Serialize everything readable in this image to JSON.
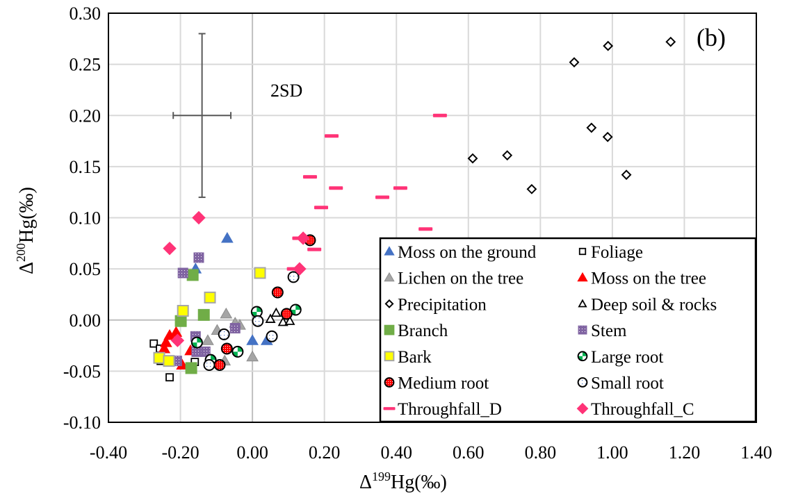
{
  "chart_data": {
    "type": "scatter",
    "panel_label": "(b)",
    "xlabel": {
      "prefix": "Δ",
      "sup": "199",
      "suffix": "Hg(‰)"
    },
    "ylabel": {
      "prefix": "Δ",
      "sup": "200",
      "suffix": "Hg(‰)"
    },
    "xlim": [
      -0.4,
      1.4
    ],
    "ylim": [
      -0.1,
      0.3
    ],
    "xticks": [
      "-0.40",
      "-0.20",
      "0.00",
      "0.20",
      "0.40",
      "0.60",
      "0.80",
      "1.00",
      "1.20",
      "1.40"
    ],
    "yticks": [
      "-0.10",
      "-0.05",
      "0.00",
      "0.05",
      "0.10",
      "0.15",
      "0.20",
      "0.25",
      "0.30"
    ],
    "grid": true,
    "legend_position": "bottom-right",
    "error_bar": {
      "label": "2SD",
      "x": -0.14,
      "y": 0.2,
      "x_err": 0.08,
      "y_err": 0.08
    },
    "series": [
      {
        "name": "Moss on the ground",
        "marker": "triangle",
        "color": "#4472C4",
        "points": [
          [
            -0.07,
            0.08
          ],
          [
            -0.158,
            0.05
          ],
          [
            0.0,
            -0.02
          ],
          [
            0.04,
            -0.02
          ]
        ]
      },
      {
        "name": "Foliage",
        "marker": "square-open",
        "color": "#000000",
        "points": [
          [
            -0.274,
            -0.023
          ],
          [
            -0.257,
            -0.028
          ],
          [
            -0.23,
            -0.056
          ],
          [
            -0.16,
            -0.041
          ],
          [
            -0.255,
            -0.04
          ]
        ]
      },
      {
        "name": "Lichen on the tree",
        "marker": "triangle",
        "color": "#A5A5A5",
        "points": [
          [
            -0.073,
            0.006
          ],
          [
            -0.124,
            -0.02
          ],
          [
            -0.098,
            -0.01
          ],
          [
            -0.035,
            -0.005
          ],
          [
            -0.077,
            -0.04
          ],
          [
            0.0,
            -0.036
          ],
          [
            -0.048,
            -0.003
          ]
        ]
      },
      {
        "name": "Moss on the tree",
        "marker": "triangle",
        "color": "#FF0000",
        "points": [
          [
            -0.23,
            -0.015
          ],
          [
            -0.212,
            -0.012
          ],
          [
            -0.245,
            -0.028
          ],
          [
            -0.195,
            -0.044
          ],
          [
            -0.172,
            -0.03
          ],
          [
            -0.24,
            -0.022
          ]
        ]
      },
      {
        "name": "Precipitation",
        "marker": "diamond-open",
        "color": "#000000",
        "points": [
          [
            0.612,
            0.158
          ],
          [
            0.708,
            0.161
          ],
          [
            0.776,
            0.128
          ],
          [
            0.942,
            0.188
          ],
          [
            0.987,
            0.179
          ],
          [
            1.039,
            0.142
          ],
          [
            0.894,
            0.252
          ],
          [
            0.988,
            0.268
          ],
          [
            1.162,
            0.272
          ]
        ]
      },
      {
        "name": "Deep soil & rocks",
        "marker": "triangle-open",
        "color": "#000000",
        "points": [
          [
            0.066,
            0.007
          ],
          [
            0.05,
            0.001
          ],
          [
            0.085,
            -0.002
          ],
          [
            0.104,
            -0.001
          ]
        ]
      },
      {
        "name": "Branch",
        "marker": "square",
        "color": "#70AD47",
        "points": [
          [
            -0.166,
            0.044
          ],
          [
            -0.135,
            0.005
          ],
          [
            -0.199,
            -0.001
          ],
          [
            -0.17,
            -0.047
          ]
        ]
      },
      {
        "name": "Stem",
        "marker": "square-dotted",
        "color": "#8064A2",
        "points": [
          [
            -0.149,
            0.061
          ],
          [
            -0.193,
            0.046
          ],
          [
            -0.158,
            -0.016
          ],
          [
            -0.048,
            -0.008
          ],
          [
            -0.131,
            -0.031
          ],
          [
            -0.155,
            -0.031
          ],
          [
            -0.21,
            -0.04
          ]
        ]
      },
      {
        "name": "Bark",
        "marker": "square",
        "color": "#FFFF00",
        "points": [
          [
            -0.118,
            0.022
          ],
          [
            -0.193,
            0.009
          ],
          [
            0.021,
            0.046
          ],
          [
            -0.259,
            -0.037
          ],
          [
            -0.232,
            -0.04
          ]
        ]
      },
      {
        "name": "Large root",
        "marker": "circle-quarter",
        "color": "#00B050",
        "points": [
          [
            -0.154,
            -0.022
          ],
          [
            -0.041,
            -0.031
          ],
          [
            -0.116,
            -0.039
          ],
          [
            0.012,
            0.008
          ],
          [
            0.12,
            0.01
          ]
        ]
      },
      {
        "name": "Medium root",
        "marker": "circle-hatched",
        "color": "#FF0000",
        "points": [
          [
            0.16,
            0.078
          ],
          [
            0.07,
            0.027
          ],
          [
            0.095,
            0.006
          ],
          [
            -0.071,
            -0.028
          ],
          [
            -0.091,
            -0.044
          ]
        ]
      },
      {
        "name": "Small root",
        "marker": "circle-dotted",
        "color": "#FFFFFF",
        "points": [
          [
            0.114,
            0.042
          ],
          [
            0.015,
            -0.001
          ],
          [
            0.054,
            -0.016
          ],
          [
            -0.079,
            -0.014
          ],
          [
            -0.12,
            -0.044
          ]
        ]
      },
      {
        "name": "Throughfall_D",
        "marker": "dash",
        "color": "#FF3377",
        "points": [
          [
            0.521,
            0.2
          ],
          [
            0.22,
            0.18
          ],
          [
            0.16,
            0.14
          ],
          [
            0.232,
            0.129
          ],
          [
            0.411,
            0.129
          ],
          [
            0.361,
            0.12
          ],
          [
            0.191,
            0.11
          ],
          [
            0.481,
            0.089
          ],
          [
            0.13,
            0.08
          ],
          [
            0.172,
            0.069
          ],
          [
            0.115,
            0.05
          ]
        ]
      },
      {
        "name": "Throughfall_C",
        "marker": "diamond",
        "color": "#FF3377",
        "points": [
          [
            -0.149,
            0.1
          ],
          [
            -0.23,
            0.07
          ],
          [
            0.141,
            0.08
          ],
          [
            0.131,
            0.05
          ],
          [
            -0.208,
            -0.02
          ]
        ]
      }
    ]
  }
}
